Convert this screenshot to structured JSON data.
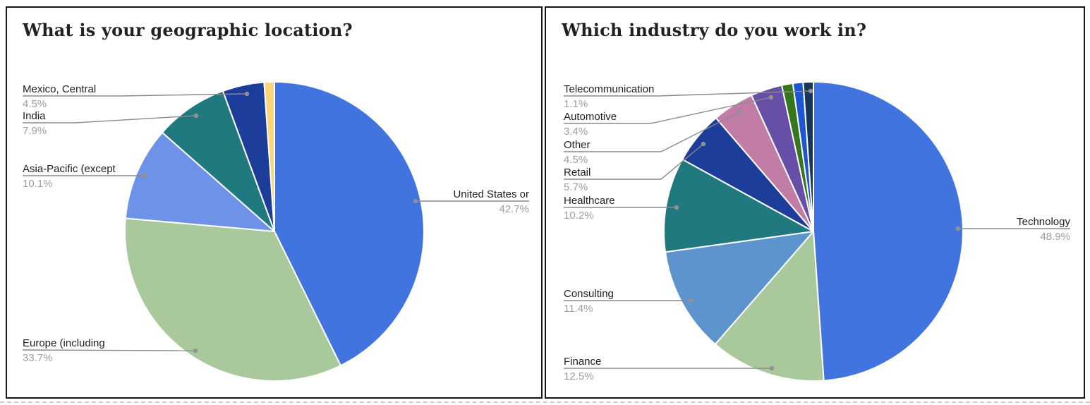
{
  "chart_data": [
    {
      "type": "pie",
      "title": "What is your geographic location?",
      "legend_position": "none",
      "labels_style": "callout-lines-with-percent",
      "slices": [
        {
          "label": "United States or",
          "value": 42.7,
          "color": "#4274DF"
        },
        {
          "label": "Europe (including",
          "value": 33.7,
          "color": "#A9C89B"
        },
        {
          "label": "Asia-Pacific (except",
          "value": 10.1,
          "color": "#6D92E8"
        },
        {
          "label": "India",
          "value": 7.9,
          "color": "#20797E"
        },
        {
          "label": "Mexico, Central",
          "value": 4.5,
          "color": "#1C3D99"
        },
        {
          "label": "",
          "value": 1.1,
          "color": "#FAD57C"
        }
      ]
    },
    {
      "type": "pie",
      "title": "Which industry do you work in?",
      "legend_position": "none",
      "labels_style": "callout-lines-with-percent",
      "slices": [
        {
          "label": "Technology",
          "value": 48.9,
          "color": "#4274DF"
        },
        {
          "label": "Finance",
          "value": 12.5,
          "color": "#A9C89B"
        },
        {
          "label": "Consulting",
          "value": 11.4,
          "color": "#5D94CD"
        },
        {
          "label": "Healthcare",
          "value": 10.2,
          "color": "#20797E"
        },
        {
          "label": "Retail",
          "value": 5.7,
          "color": "#1C3D99"
        },
        {
          "label": "Other",
          "value": 4.5,
          "color": "#C17DA5"
        },
        {
          "label": "Automotive",
          "value": 3.4,
          "color": "#674EA7"
        },
        {
          "label": "",
          "value": 1.2,
          "color": "#38761D"
        },
        {
          "label": "",
          "value": 1.1,
          "color": "#1C56D3"
        },
        {
          "label": "Telecommunication",
          "value": 1.1,
          "color": "#16365C"
        }
      ]
    }
  ],
  "styles": {
    "leader_line_color": "#8a8a8a",
    "leader_dot_color": "#919191",
    "slice_stroke_color": "#ffffff",
    "label_text_color": "#212121",
    "percent_text_color": "#9e9e9e"
  }
}
